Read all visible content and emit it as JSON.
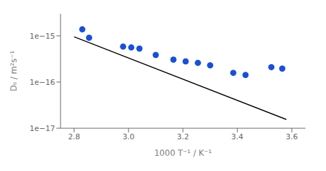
{
  "chart_data": {
    "type": "scatter",
    "xlabel": "1000 T⁻¹ / K⁻¹",
    "ylabel": "Dₗᵢ / m²s⁻¹",
    "log": "y",
    "grid": false,
    "xlim": [
      2.75,
      3.65
    ],
    "ylim": [
      1e-17,
      3e-15
    ],
    "xticks": [
      2.8,
      {
        "value": 3.0,
        "label": "3.0"
      },
      3.2,
      3.4,
      3.6
    ],
    "yticks": [
      {
        "value": 1e-17,
        "label": "1e−17"
      },
      {
        "value": 1e-16,
        "label": "1e−16"
      },
      {
        "value": 1e-15,
        "label": "1e−15"
      }
    ],
    "series": [
      {
        "type": "scatter",
        "color": "#1a4fd6",
        "marker": "circle",
        "x": [
          2.83,
          2.855,
          2.98,
          3.01,
          3.04,
          3.1,
          3.165,
          3.21,
          3.255,
          3.3,
          3.385,
          3.43,
          3.525,
          3.565
        ],
        "values": [
          1.38e-15,
          9.1e-16,
          5.85e-16,
          5.6e-16,
          5.3e-16,
          3.85e-16,
          3.05e-16,
          2.8e-16,
          2.6e-16,
          2.3e-16,
          1.58e-16,
          1.42e-16,
          2.1e-16,
          1.95e-16
        ]
      },
      {
        "type": "line",
        "color": "#000000",
        "line_style": "solid",
        "x": [
          2.8,
          3.58
        ],
        "values": [
          9.5e-16,
          1.55e-17
        ]
      }
    ]
  }
}
